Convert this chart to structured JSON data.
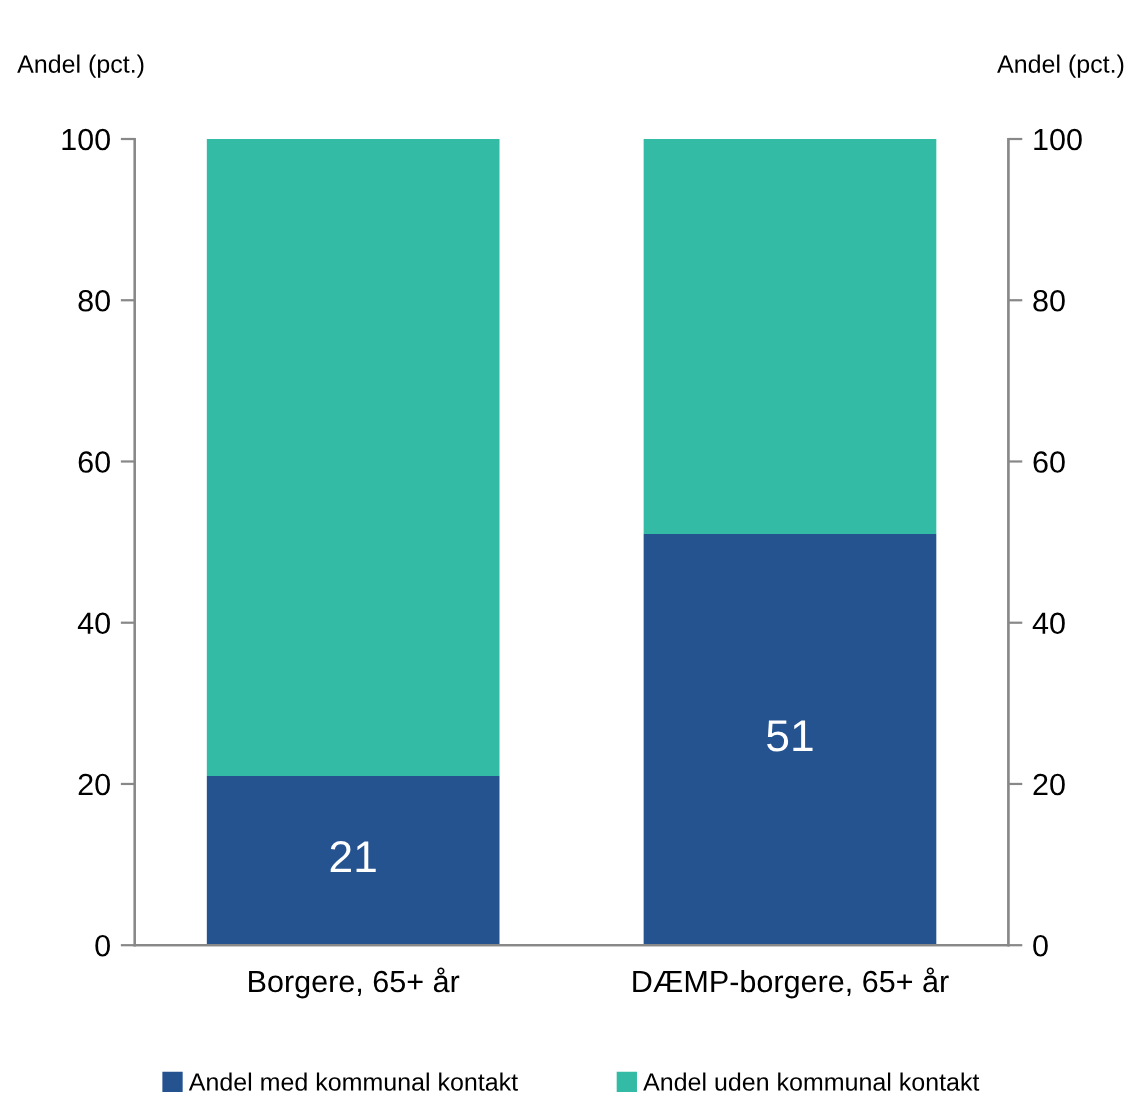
{
  "chart_data": {
    "type": "bar",
    "stacked": true,
    "categories": [
      "Borgere, 65+ år",
      "DÆMP-borgere, 65+ år"
    ],
    "series": [
      {
        "name": "Andel med kommunal kontakt",
        "color": "#245390",
        "values": [
          21,
          51
        ],
        "value_labels": [
          "21",
          "51"
        ]
      },
      {
        "name": "Andel uden kommunal kontakt",
        "color": "#33bba5",
        "values": [
          79,
          49
        ]
      }
    ],
    "ylabel": "Andel (pct.)",
    "y2label": "Andel (pct.)",
    "ylim": [
      0,
      100
    ],
    "yticks": [
      0,
      20,
      40,
      60,
      80,
      100
    ],
    "y2lim": [
      0,
      100
    ],
    "y2ticks": [
      0,
      20,
      40,
      60,
      80,
      100
    ],
    "grid": false,
    "legend": "bottom"
  }
}
